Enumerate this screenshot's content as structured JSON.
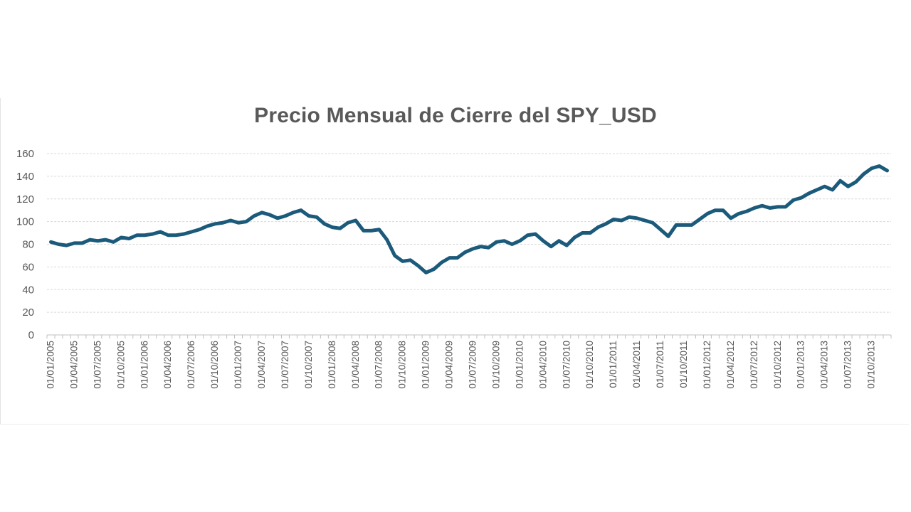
{
  "chart_data": {
    "type": "line",
    "title": "Precio Mensual de Cierre del SPY_USD",
    "xlabel": "",
    "ylabel": "",
    "ylim": [
      0,
      160
    ],
    "yticks": [
      0,
      20,
      40,
      60,
      80,
      100,
      120,
      140,
      160
    ],
    "grid": "horizontal dashed",
    "legend": "none",
    "color": "#1b5a7a",
    "xtick_labels": [
      "01/01/2005",
      "01/04/2005",
      "01/07/2005",
      "01/10/2005",
      "01/01/2006",
      "01/04/2006",
      "01/07/2006",
      "01/10/2006",
      "01/01/2007",
      "01/04/2007",
      "01/07/2007",
      "01/10/2007",
      "01/01/2008",
      "01/04/2008",
      "01/07/2008",
      "01/10/2008",
      "01/01/2009",
      "01/04/2009",
      "01/07/2009",
      "01/10/2009",
      "01/01/2010",
      "01/04/2010",
      "01/07/2010",
      "01/10/2010",
      "01/01/2011",
      "01/04/2011",
      "01/07/2011",
      "01/10/2011",
      "01/01/2012",
      "01/04/2012",
      "01/07/2012",
      "01/10/2012",
      "01/01/2013",
      "01/04/2013",
      "01/07/2013",
      "01/10/2013"
    ],
    "series": [
      {
        "x": [
          "2005-01",
          "2005-02",
          "2005-03",
          "2005-04",
          "2005-05",
          "2005-06",
          "2005-07",
          "2005-08",
          "2005-09",
          "2005-10",
          "2005-11",
          "2005-12",
          "2006-01",
          "2006-02",
          "2006-03",
          "2006-04",
          "2006-05",
          "2006-06",
          "2006-07",
          "2006-08",
          "2006-09",
          "2006-10",
          "2006-11",
          "2006-12",
          "2007-01",
          "2007-02",
          "2007-03",
          "2007-04",
          "2007-05",
          "2007-06",
          "2007-07",
          "2007-08",
          "2007-09",
          "2007-10",
          "2007-11",
          "2007-12",
          "2008-01",
          "2008-02",
          "2008-03",
          "2008-04",
          "2008-05",
          "2008-06",
          "2008-07",
          "2008-08",
          "2008-09",
          "2008-10",
          "2008-11",
          "2008-12",
          "2009-01",
          "2009-02",
          "2009-03",
          "2009-04",
          "2009-05",
          "2009-06",
          "2009-07",
          "2009-08",
          "2009-09",
          "2009-10",
          "2009-11",
          "2009-12",
          "2010-01",
          "2010-02",
          "2010-03",
          "2010-04",
          "2010-05",
          "2010-06",
          "2010-07",
          "2010-08",
          "2010-09",
          "2010-10",
          "2010-11",
          "2010-12",
          "2011-01",
          "2011-02",
          "2011-03",
          "2011-04",
          "2011-05",
          "2011-06",
          "2011-07",
          "2011-08",
          "2011-09",
          "2011-10",
          "2011-11",
          "2011-12",
          "2012-01",
          "2012-02",
          "2012-03",
          "2012-04",
          "2012-05",
          "2012-06",
          "2012-07",
          "2012-08",
          "2012-09",
          "2012-10",
          "2012-11",
          "2012-12",
          "2013-01",
          "2013-02",
          "2013-03",
          "2013-04",
          "2013-05",
          "2013-06",
          "2013-07",
          "2013-08",
          "2013-09",
          "2013-10",
          "2013-11",
          "2013-12"
        ],
        "values": [
          82,
          80,
          79,
          81,
          81,
          84,
          83,
          84,
          82,
          86,
          85,
          88,
          88,
          89,
          91,
          88,
          88,
          89,
          91,
          93,
          96,
          98,
          99,
          101,
          99,
          100,
          105,
          108,
          106,
          103,
          105,
          108,
          110,
          105,
          104,
          98,
          95,
          94,
          99,
          101,
          92,
          92,
          93,
          84,
          70,
          65,
          66,
          61,
          55,
          58,
          64,
          68,
          68,
          73,
          76,
          78,
          77,
          82,
          83,
          80,
          83,
          88,
          89,
          83,
          78,
          83,
          79,
          86,
          90,
          90,
          95,
          98,
          102,
          101,
          104,
          103,
          101,
          99,
          93,
          87,
          97,
          97,
          97,
          102,
          107,
          110,
          110,
          103,
          107,
          109,
          112,
          114,
          112,
          113,
          113,
          119,
          121,
          125,
          128,
          131,
          128,
          136,
          131,
          135,
          142,
          147,
          149,
          145
        ]
      }
    ]
  }
}
